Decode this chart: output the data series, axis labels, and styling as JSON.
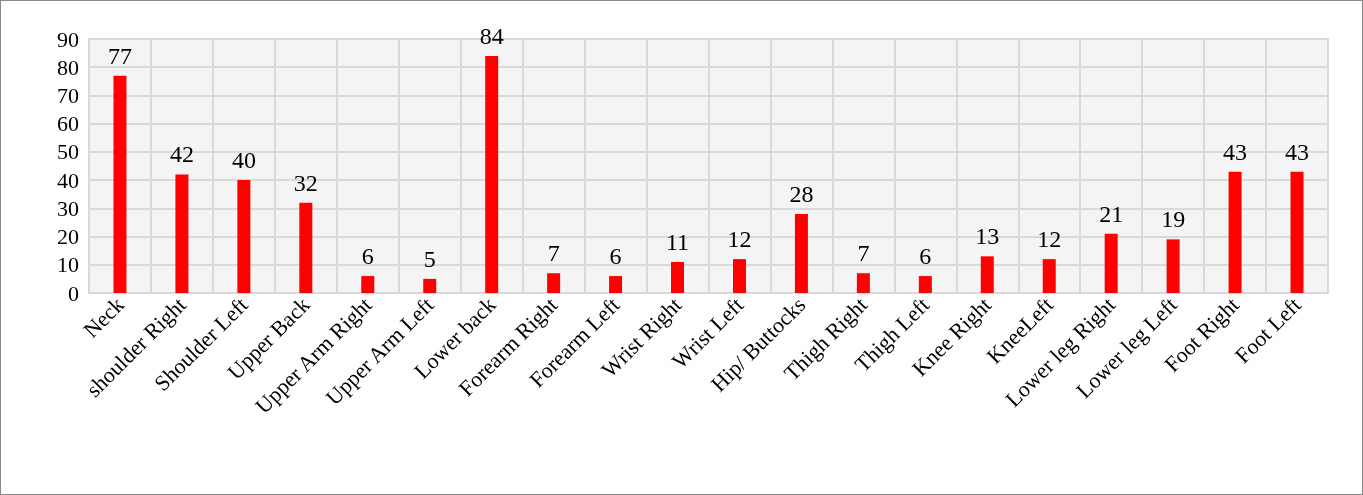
{
  "chart_data": {
    "type": "bar",
    "categories": [
      "Neck",
      "shoulder Right",
      "Shoulder Left",
      "Upper Back",
      "Upper Arm Right",
      "Upper Arm Left",
      "Lower back",
      "Forearm Right",
      "Forearm Left",
      "Wrist Right",
      "Wrist Left",
      "Hip/ Buttocks",
      "Thigh Right",
      "Thigh Left",
      "Knee Right",
      "KneeLeft",
      "Lower leg Right",
      "Lower leg Left",
      "Foot Right",
      "Foot Left"
    ],
    "values": [
      77,
      42,
      40,
      32,
      6,
      5,
      84,
      7,
      6,
      11,
      12,
      28,
      7,
      6,
      13,
      12,
      21,
      19,
      43,
      43
    ],
    "color": "#ff0000",
    "ylim": [
      0,
      90
    ],
    "yticks": [
      0,
      10,
      20,
      30,
      40,
      50,
      60,
      70,
      80,
      90
    ],
    "grid": true,
    "data_labels": true
  }
}
